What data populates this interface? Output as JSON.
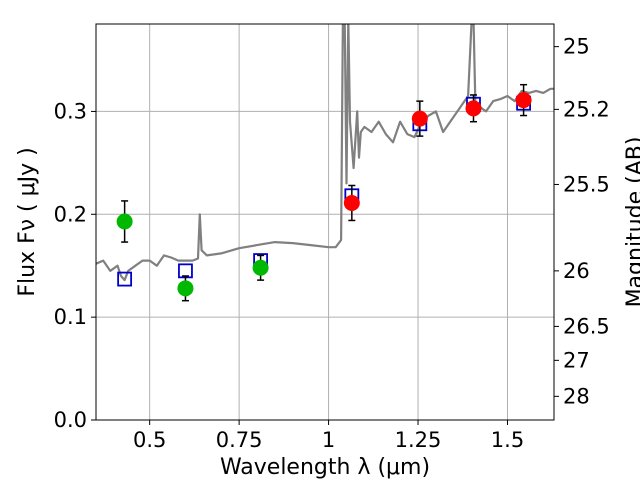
{
  "chart_data": {
    "type": "scatter",
    "xlabel": "Wavelength  λ (μm)",
    "ylabel": "Flux  Fν  ( μJy )",
    "ylabel_right": "Magnitude (AB)",
    "xlim": [
      0.35,
      1.63
    ],
    "ylim": [
      0.0,
      0.385
    ],
    "grid": true,
    "x_ticks": [
      0.5,
      0.75,
      1.0,
      1.25,
      1.5
    ],
    "x_tick_labels": [
      "0.5",
      "0.75",
      "1",
      "1.25",
      "1.5"
    ],
    "y_ticks": [
      0.0,
      0.1,
      0.2,
      0.3
    ],
    "y_tick_labels": [
      "0.0",
      "0.1",
      "0.2",
      "0.3"
    ],
    "right_ticks": [
      {
        "label": "25",
        "flux": 0.363
      },
      {
        "label": "25.2",
        "flux": 0.302
      },
      {
        "label": "25.5",
        "flux": 0.229
      },
      {
        "label": "26",
        "flux": 0.145
      },
      {
        "label": "26.5",
        "flux": 0.091
      },
      {
        "label": "27",
        "flux": 0.058
      },
      {
        "label": "28",
        "flux": 0.023
      }
    ],
    "colors": {
      "spectrum": "#808080",
      "model": "#0000cc",
      "green": "#00b800",
      "red": "#ff0000",
      "errorbar": "#000000",
      "grid": "#b0b0b0"
    },
    "series": [
      {
        "kind": "spectrum",
        "x": [
          0.35,
          0.37,
          0.39,
          0.41,
          0.42,
          0.43,
          0.44,
          0.46,
          0.48,
          0.5,
          0.52,
          0.54,
          0.56,
          0.58,
          0.6,
          0.62,
          0.635,
          0.64,
          0.645,
          0.66,
          0.7,
          0.75,
          0.8,
          0.85,
          0.9,
          0.95,
          1.0,
          1.02,
          1.035,
          1.04,
          1.045,
          1.05,
          1.055,
          1.06,
          1.07,
          1.08,
          1.085,
          1.09,
          1.1,
          1.12,
          1.14,
          1.16,
          1.18,
          1.2,
          1.22,
          1.24,
          1.26,
          1.28,
          1.3,
          1.32,
          1.34,
          1.36,
          1.38,
          1.39,
          1.4,
          1.405,
          1.41,
          1.42,
          1.44,
          1.46,
          1.48,
          1.5,
          1.52,
          1.54,
          1.56,
          1.58,
          1.6,
          1.62,
          1.63
        ],
        "y": [
          0.152,
          0.155,
          0.145,
          0.15,
          0.14,
          0.136,
          0.145,
          0.15,
          0.155,
          0.155,
          0.15,
          0.16,
          0.158,
          0.155,
          0.155,
          0.155,
          0.157,
          0.2,
          0.165,
          0.16,
          0.162,
          0.167,
          0.17,
          0.173,
          0.172,
          0.17,
          0.168,
          0.168,
          0.175,
          0.39,
          0.39,
          0.23,
          0.39,
          0.29,
          0.245,
          0.3,
          0.255,
          0.28,
          0.285,
          0.28,
          0.29,
          0.278,
          0.27,
          0.29,
          0.278,
          0.275,
          0.29,
          0.296,
          0.3,
          0.28,
          0.29,
          0.3,
          0.31,
          0.315,
          0.39,
          0.39,
          0.31,
          0.305,
          0.3,
          0.31,
          0.312,
          0.315,
          0.31,
          0.32,
          0.318,
          0.32,
          0.318,
          0.322,
          0.322
        ]
      },
      {
        "kind": "model",
        "name": "",
        "x": [
          0.43,
          0.6,
          0.81,
          1.065,
          1.255,
          1.405,
          1.545
        ],
        "y": [
          0.137,
          0.145,
          0.155,
          0.218,
          0.288,
          0.307,
          0.308
        ]
      },
      {
        "kind": "photometry",
        "color": "green",
        "x": [
          0.43,
          0.6,
          0.81
        ],
        "y": [
          0.193,
          0.128,
          0.148
        ],
        "err": [
          0.02,
          0.012,
          0.012
        ]
      },
      {
        "kind": "photometry",
        "color": "red",
        "x": [
          1.065,
          1.255,
          1.405,
          1.545
        ],
        "y": [
          0.211,
          0.293,
          0.303,
          0.311
        ],
        "err": [
          0.017,
          0.017,
          0.013,
          0.015
        ]
      }
    ]
  }
}
